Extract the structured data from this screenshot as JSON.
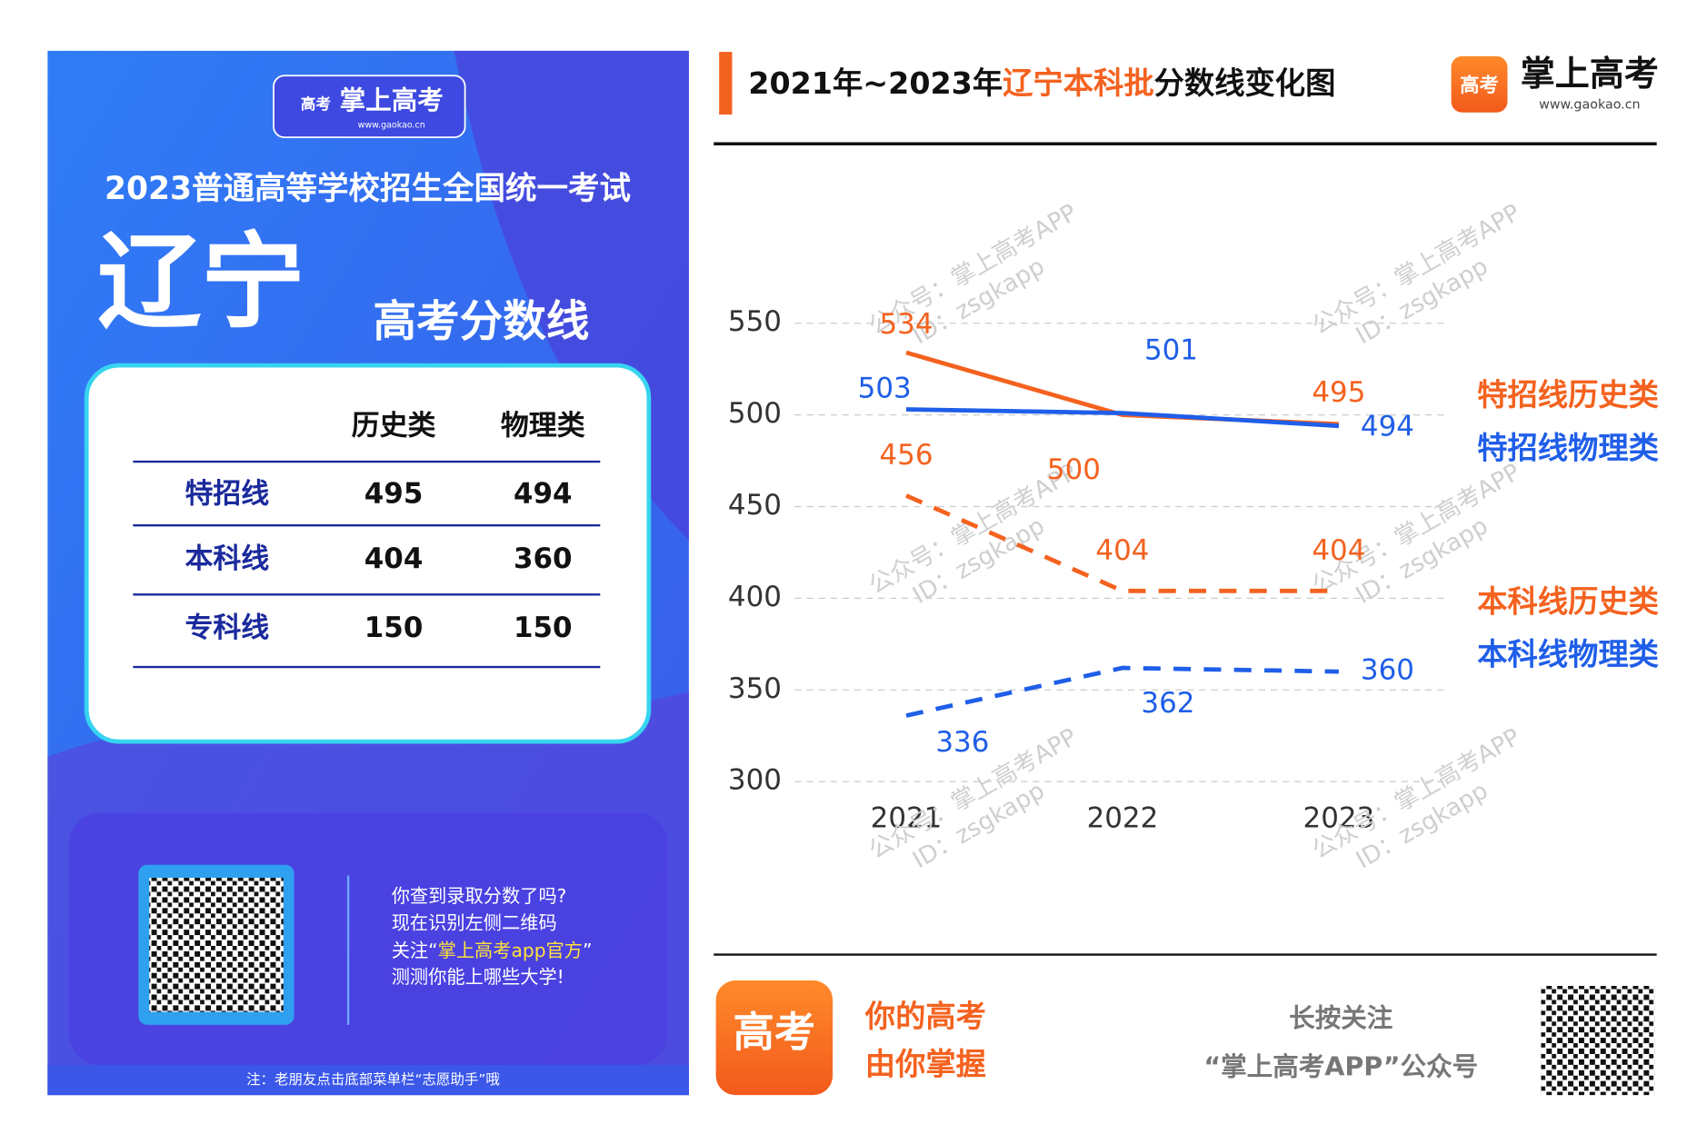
{
  "poster": {
    "logo": "掌上高考",
    "logo_url": "www.gaokao.cn",
    "icon_text": "高考",
    "heading": "2023普通高等学校招生全国统一考试",
    "province": "辽宁",
    "subtitle": "高考分数线",
    "table": {
      "header": [
        "历史类",
        "物理类"
      ],
      "rows": [
        [
          "特招线",
          495,
          494
        ],
        [
          "本科线",
          404,
          360
        ],
        [
          "专科线",
          150,
          150
        ]
      ]
    },
    "promo": [
      "你查到录取分数了吗?",
      "现在识别左侧二维码",
      [
        "关注“",
        "掌上高考app官方",
        "”"
      ],
      "测测你能上哪些大学!"
    ],
    "note": "注：老朋友点击底部菜单栏“志愿助手”哦"
  },
  "chart_data": {
    "type": "line",
    "title": [
      "2021年~2023年",
      "辽宁本科批",
      "分数线变化图"
    ],
    "logo": "掌上高考",
    "logo_url": "www.gaokao.cn",
    "watermark": [
      "公众号：掌上高考APP",
      "ID：zsgkapp"
    ],
    "categories": [
      "2021",
      "2022",
      "2023"
    ],
    "ylim": [
      300,
      550
    ],
    "yticks": [
      300,
      350,
      400,
      450,
      500,
      550
    ],
    "grid": true,
    "series": [
      {
        "name": "特招线历史类",
        "color": "#f4621f",
        "dashed": false,
        "values": [
          534,
          500,
          495
        ]
      },
      {
        "name": "特招线物理类",
        "color": "#1f5ee8",
        "dashed": false,
        "values": [
          503,
          501,
          494
        ]
      },
      {
        "name": "本科线历史类",
        "color": "#f4621f",
        "dashed": true,
        "values": [
          456,
          404,
          404
        ]
      },
      {
        "name": "本科线物理类",
        "color": "#1f5ee8",
        "dashed": true,
        "values": [
          336,
          362,
          360
        ]
      }
    ]
  },
  "footer": {
    "slogan": [
      "你的高考",
      "由你掌握"
    ],
    "follow": [
      "长按关注",
      "“掌上高考APP”公众号"
    ],
    "icon_text": "高考"
  }
}
